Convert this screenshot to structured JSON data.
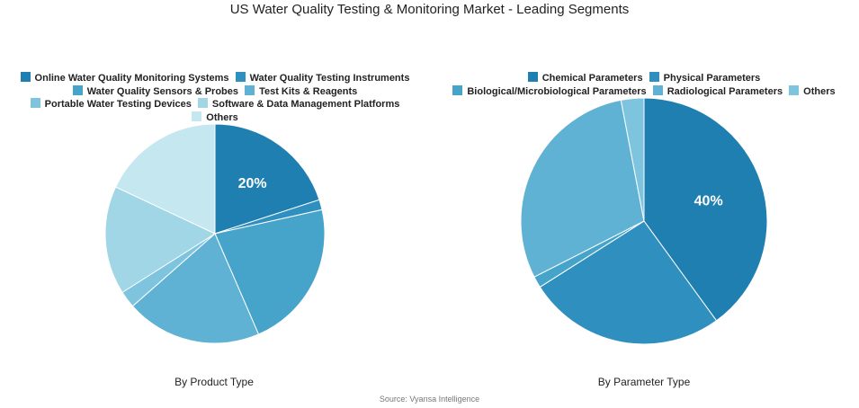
{
  "title": "US Water Quality Testing & Monitoring Market - Leading Segments",
  "source": "Source: Vyansa Intelligence",
  "chart_data": [
    {
      "type": "pie",
      "caption": "By Product Type",
      "labels": [
        "Online Water Quality Monitoring Systems",
        "Water Quality Testing Instruments",
        "Water Quality Sensors & Probes",
        "Test Kits & Reagents",
        "Portable Water Testing Devices",
        "Software & Data Management Platforms",
        "Others"
      ],
      "values": [
        20,
        1.5,
        22,
        20,
        2.5,
        16,
        18
      ],
      "colors": [
        "#1f7fb0",
        "#2f8fbf",
        "#46a3c9",
        "#5fb2d4",
        "#7ec4de",
        "#a1d6e6",
        "#c4e7f0"
      ],
      "data_labels": [
        "20%",
        "",
        "",
        "",
        "",
        "",
        ""
      ],
      "legend_position": "top"
    },
    {
      "type": "pie",
      "caption": "By Parameter Type",
      "labels": [
        "Chemical Parameters",
        "Physical Parameters",
        "Biological/Microbiological Parameters",
        "Radiological Parameters",
        "Others"
      ],
      "values": [
        40,
        26,
        1.5,
        29.5,
        3
      ],
      "colors": [
        "#1f7fb0",
        "#2f8fbf",
        "#46a3c9",
        "#5fb2d4",
        "#7ec4de"
      ],
      "data_labels": [
        "40%",
        "",
        "",
        "",
        ""
      ],
      "legend_position": "top"
    }
  ]
}
